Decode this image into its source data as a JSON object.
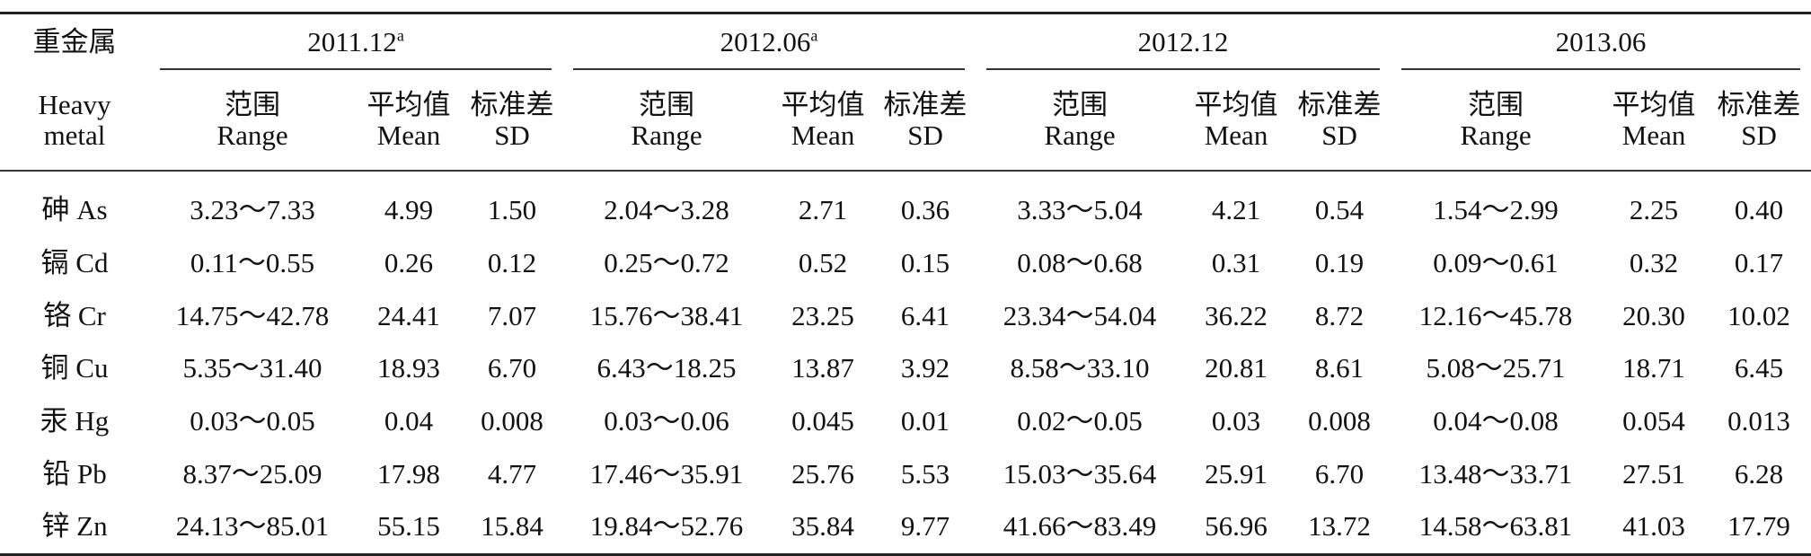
{
  "header": {
    "heavy_metal_cn": "重金属",
    "heavy_metal_en1": "Heavy",
    "heavy_metal_en2": "metal",
    "periods": [
      {
        "label": "2011.12",
        "sup": "a"
      },
      {
        "label": "2012.06",
        "sup": "a"
      },
      {
        "label": "2012.12",
        "sup": ""
      },
      {
        "label": "2013.06",
        "sup": ""
      }
    ],
    "sub": {
      "range_cn": "范围",
      "range_en": "Range",
      "mean_cn": "平均值",
      "mean_en": "Mean",
      "sd_cn": "标准差",
      "sd_en": "SD"
    }
  },
  "rows": [
    {
      "metal": "砷 As",
      "cells": [
        "3.23～7.33",
        "4.99",
        "1.50",
        "2.04～3.28",
        "2.71",
        "0.36",
        "3.33～5.04",
        "4.21",
        "0.54",
        "1.54～2.99",
        "2.25",
        "0.40"
      ]
    },
    {
      "metal": "镉 Cd",
      "cells": [
        "0.11～0.55",
        "0.26",
        "0.12",
        "0.25～0.72",
        "0.52",
        "0.15",
        "0.08～0.68",
        "0.31",
        "0.19",
        "0.09～0.61",
        "0.32",
        "0.17"
      ]
    },
    {
      "metal": "铬 Cr",
      "cells": [
        "14.75～42.78",
        "24.41",
        "7.07",
        "15.76～38.41",
        "23.25",
        "6.41",
        "23.34～54.04",
        "36.22",
        "8.72",
        "12.16～45.78",
        "20.30",
        "10.02"
      ]
    },
    {
      "metal": "铜 Cu",
      "cells": [
        "5.35～31.40",
        "18.93",
        "6.70",
        "6.43～18.25",
        "13.87",
        "3.92",
        "8.58～33.10",
        "20.81",
        "8.61",
        "5.08～25.71",
        "18.71",
        "6.45"
      ]
    },
    {
      "metal": "汞 Hg",
      "cells": [
        "0.03～0.05",
        "0.04",
        "0.008",
        "0.03～0.06",
        "0.045",
        "0.01",
        "0.02～0.05",
        "0.03",
        "0.008",
        "0.04～0.08",
        "0.054",
        "0.013"
      ]
    },
    {
      "metal": "铅 Pb",
      "cells": [
        "8.37～25.09",
        "17.98",
        "4.77",
        "17.46～35.91",
        "25.76",
        "5.53",
        "15.03～35.64",
        "25.91",
        "6.70",
        "13.48～33.71",
        "27.51",
        "6.28"
      ]
    },
    {
      "metal": "锌 Zn",
      "cells": [
        "24.13～85.01",
        "55.15",
        "15.84",
        "19.84～52.76",
        "35.84",
        "9.77",
        "41.66～83.49",
        "56.96",
        "13.72",
        "14.58～63.81",
        "41.03",
        "17.79"
      ]
    }
  ]
}
